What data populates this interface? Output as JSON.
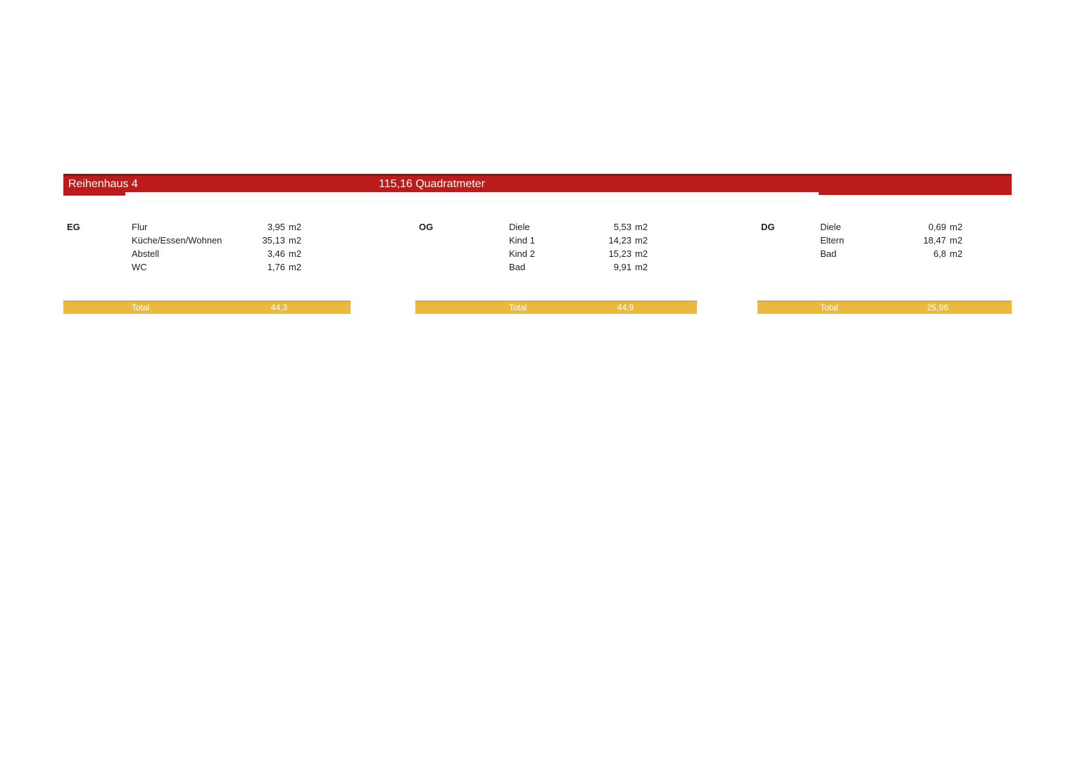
{
  "header": {
    "title": "Reihenhaus 4",
    "total_area": "115,16 Quadratmeter"
  },
  "labels": {
    "total": "Total",
    "unit": "m2"
  },
  "floors": [
    {
      "label": "EG",
      "rooms": [
        {
          "name": "Flur",
          "area": "3,95"
        },
        {
          "name": "Küche/Essen/Wohnen",
          "area": "35,13"
        },
        {
          "name": "Abstell",
          "area": "3,46"
        },
        {
          "name": "WC",
          "area": "1,76"
        }
      ],
      "total": "44,3"
    },
    {
      "label": "OG",
      "rooms": [
        {
          "name": "Diele",
          "area": "5,53"
        },
        {
          "name": "Kind 1",
          "area": "14,23"
        },
        {
          "name": "Kind 2",
          "area": "15,23"
        },
        {
          "name": "Bad",
          "area": "9,91"
        }
      ],
      "total": "44,9"
    },
    {
      "label": "DG",
      "rooms": [
        {
          "name": "Diele",
          "area": "0,69"
        },
        {
          "name": "Eltern",
          "area": "18,47"
        },
        {
          "name": "Bad",
          "area": "6,8"
        }
      ],
      "total": "25,96"
    }
  ],
  "colors": {
    "red": "#bc1b1b",
    "red_dark": "#8e1313",
    "gold": "#eab93e",
    "gold_edge": "#dca833",
    "text": "#1f1f1f",
    "bar_text": "#ffffff"
  }
}
